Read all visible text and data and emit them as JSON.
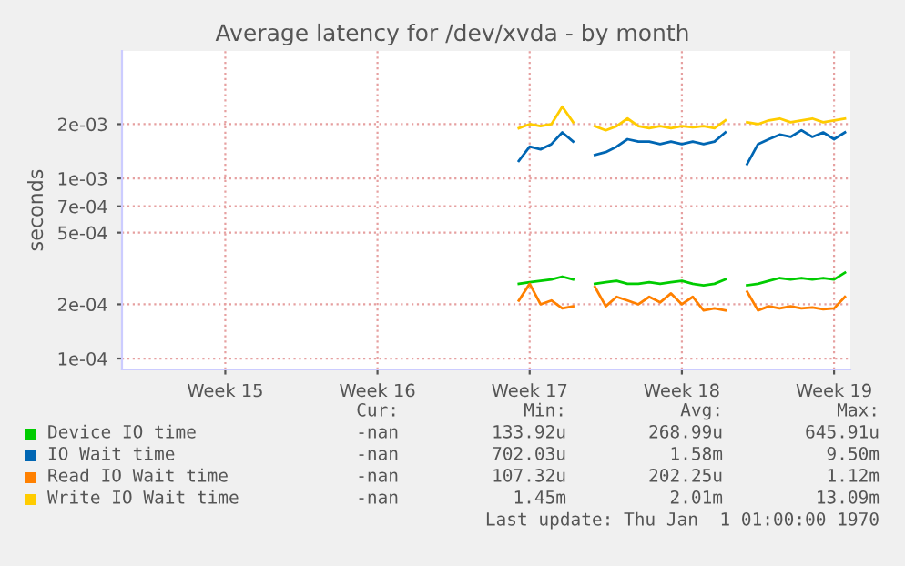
{
  "chart_data": {
    "type": "line",
    "title": "Average latency for /dev/xvda - by month",
    "ylabel": "seconds",
    "log": "y",
    "categories": [
      null,
      null,
      null,
      null,
      null,
      null,
      null,
      null,
      null,
      "Week 15",
      null,
      null,
      null,
      null,
      null,
      null,
      null,
      null,
      null,
      null,
      null,
      null,
      null,
      "Week 16",
      null,
      null,
      null,
      null,
      null,
      null,
      null,
      null,
      null,
      null,
      null,
      null,
      null,
      "Week 17",
      null,
      null,
      null,
      null,
      null,
      null,
      null,
      null,
      null,
      null,
      null,
      null,
      null,
      "Week 18",
      null,
      null,
      null,
      null,
      null,
      null,
      null,
      null,
      null,
      null,
      null,
      null,
      null,
      "Week 19",
      null
    ],
    "series": [
      {
        "name": "Device IO time",
        "color": "#00cc00",
        "values": [
          null,
          null,
          null,
          null,
          null,
          null,
          null,
          null,
          null,
          null,
          null,
          null,
          null,
          null,
          null,
          null,
          null,
          null,
          null,
          null,
          null,
          null,
          null,
          null,
          null,
          null,
          null,
          null,
          null,
          null,
          null,
          null,
          null,
          null,
          null,
          null,
          0.00026,
          0.000265,
          0.00027,
          0.000275,
          0.000285,
          0.000275,
          null,
          0.00026,
          0.000265,
          0.00027,
          0.00026,
          0.00026,
          0.000265,
          0.00026,
          0.000265,
          0.00027,
          0.00026,
          0.000255,
          0.00026,
          0.000275,
          null,
          0.000255,
          0.00026,
          0.00027,
          0.00028,
          0.000275,
          0.00028,
          0.000275,
          0.00028,
          0.000275,
          0.0003
        ]
      },
      {
        "name": "IO Wait time",
        "color": "#0066b3",
        "values": [
          null,
          null,
          null,
          null,
          null,
          null,
          null,
          null,
          null,
          null,
          null,
          null,
          null,
          null,
          null,
          null,
          null,
          null,
          null,
          null,
          null,
          null,
          null,
          null,
          null,
          null,
          null,
          null,
          null,
          null,
          null,
          null,
          null,
          null,
          null,
          null,
          0.00125,
          0.0015,
          0.00145,
          0.00155,
          0.0018,
          0.0016,
          null,
          0.00135,
          0.0014,
          0.0015,
          0.00165,
          0.0016,
          0.0016,
          0.00155,
          0.0016,
          0.00155,
          0.0016,
          0.00155,
          0.0016,
          0.0018,
          null,
          0.0012,
          0.00155,
          0.00165,
          0.00175,
          0.0017,
          0.00185,
          0.0017,
          0.0018,
          0.00165,
          0.0018
        ]
      },
      {
        "name": "Read IO Wait time",
        "color": "#ff8000",
        "values": [
          null,
          null,
          null,
          null,
          null,
          null,
          null,
          null,
          null,
          null,
          null,
          null,
          null,
          null,
          null,
          null,
          null,
          null,
          null,
          null,
          null,
          null,
          null,
          null,
          null,
          null,
          null,
          null,
          null,
          null,
          null,
          null,
          null,
          null,
          null,
          null,
          0.00021,
          0.00026,
          0.0002,
          0.00021,
          0.00019,
          0.000195,
          null,
          0.00025,
          0.000195,
          0.00022,
          0.00021,
          0.0002,
          0.00022,
          0.000205,
          0.00023,
          0.0002,
          0.00022,
          0.000185,
          0.00019,
          0.000185,
          null,
          0.000235,
          0.000185,
          0.000195,
          0.00019,
          0.000195,
          0.00019,
          0.000192,
          0.000188,
          0.00019,
          0.00022
        ]
      },
      {
        "name": "Write IO Wait time",
        "color": "#ffcc00",
        "values": [
          null,
          null,
          null,
          null,
          null,
          null,
          null,
          null,
          null,
          null,
          null,
          null,
          null,
          null,
          null,
          null,
          null,
          null,
          null,
          null,
          null,
          null,
          null,
          null,
          null,
          null,
          null,
          null,
          null,
          null,
          null,
          null,
          null,
          null,
          null,
          null,
          0.0019,
          0.002,
          0.00195,
          0.002,
          0.0025,
          0.00205,
          null,
          0.00195,
          0.00185,
          0.00195,
          0.00215,
          0.00195,
          0.0019,
          0.00195,
          0.0019,
          0.00195,
          0.00192,
          0.00195,
          0.0019,
          0.0021,
          null,
          0.00205,
          0.002,
          0.0021,
          0.00215,
          0.00205,
          0.0021,
          0.00215,
          0.00205,
          0.0021,
          0.00215
        ]
      }
    ],
    "ylim": [
      8.7e-05,
      0.0051
    ],
    "yticks": [
      {
        "value": 0.0001,
        "label": "1e-04"
      },
      {
        "value": 0.0002,
        "label": "2e-04"
      },
      {
        "value": 0.0005,
        "label": "5e-04"
      },
      {
        "value": 0.0007,
        "label": "7e-04"
      },
      {
        "value": 0.001,
        "label": "1e-03"
      },
      {
        "value": 0.002,
        "label": "2e-03"
      }
    ],
    "grid": true,
    "legend": "bottom",
    "annotations": [
      "Cur:",
      "Min:",
      "Avg:",
      "Max:",
      "-nan",
      "133.92u",
      "268.99u",
      "645.91u",
      "-nan",
      "702.03u",
      "1.58m",
      "9.50m",
      "-nan",
      "107.32u",
      "202.25u",
      "1.12m",
      "-nan",
      "1.45m",
      "2.01m",
      "13.09m",
      "Last update: Thu Jan  1 01:00:00 1970"
    ]
  }
}
